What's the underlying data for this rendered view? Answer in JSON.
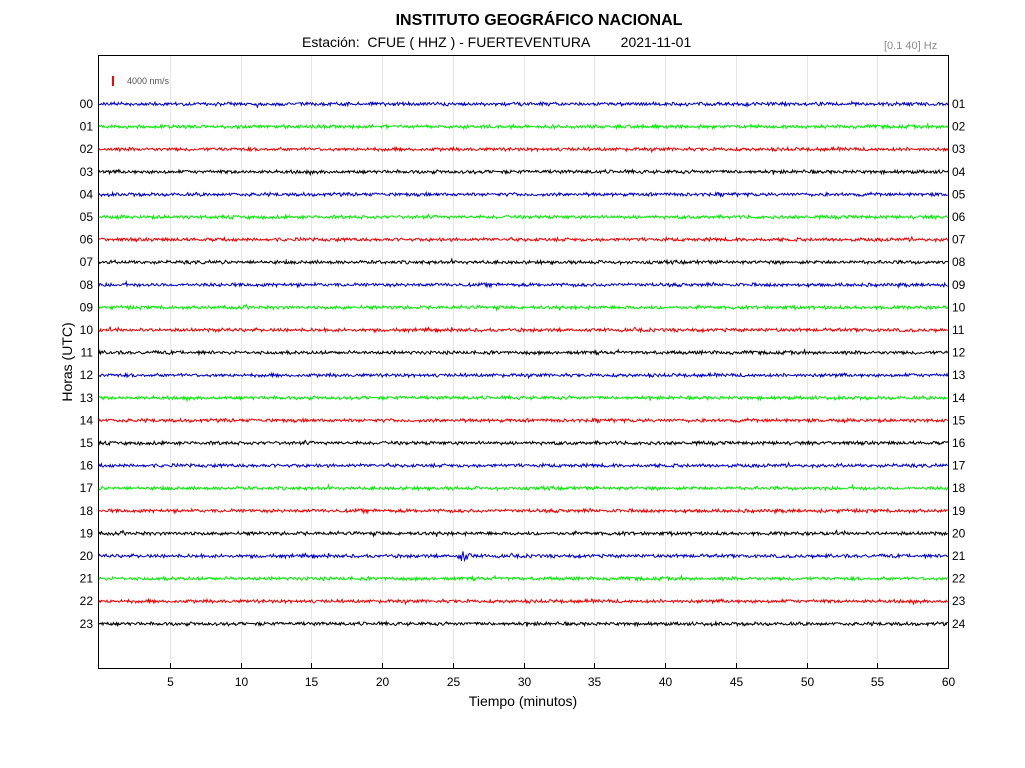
{
  "header": {
    "title": "INSTITUTO GEOGRÁFICO NACIONAL",
    "subtitle": "Estación:  CFUE ( HHZ ) - FUERTEVENTURA        2021-11-01",
    "filter": "[0.1 40] Hz"
  },
  "chart_data": {
    "type": "line",
    "subtype": "helicorder",
    "xlabel": "Tiempo (minutos)",
    "ylabel": "Horas (UTC)",
    "xlim": [
      0,
      60
    ],
    "x_ticks": [
      5,
      10,
      15,
      20,
      25,
      30,
      35,
      40,
      45,
      50,
      55,
      60
    ],
    "scale_label": "4000 nm/s",
    "scale_color": "#ff0000",
    "grid": true,
    "trace_colors": [
      "#0000cc",
      "#00ee00",
      "#ee0000",
      "#000000"
    ],
    "rows": [
      {
        "left": "00",
        "right": "01"
      },
      {
        "left": "01",
        "right": "02"
      },
      {
        "left": "02",
        "right": "03"
      },
      {
        "left": "03",
        "right": "04"
      },
      {
        "left": "04",
        "right": "05"
      },
      {
        "left": "05",
        "right": "06"
      },
      {
        "left": "06",
        "right": "07"
      },
      {
        "left": "07",
        "right": "08"
      },
      {
        "left": "08",
        "right": "09"
      },
      {
        "left": "09",
        "right": "10"
      },
      {
        "left": "10",
        "right": "11"
      },
      {
        "left": "11",
        "right": "12"
      },
      {
        "left": "12",
        "right": "13"
      },
      {
        "left": "13",
        "right": "14"
      },
      {
        "left": "14",
        "right": "15"
      },
      {
        "left": "15",
        "right": "16"
      },
      {
        "left": "16",
        "right": "17"
      },
      {
        "left": "17",
        "right": "18"
      },
      {
        "left": "18",
        "right": "19"
      },
      {
        "left": "19",
        "right": "20"
      },
      {
        "left": "20",
        "right": "21"
      },
      {
        "left": "21",
        "right": "22"
      },
      {
        "left": "22",
        "right": "23"
      },
      {
        "left": "23",
        "right": "24"
      }
    ],
    "events": [
      {
        "hour": "20",
        "minute": 25.6
      }
    ]
  }
}
